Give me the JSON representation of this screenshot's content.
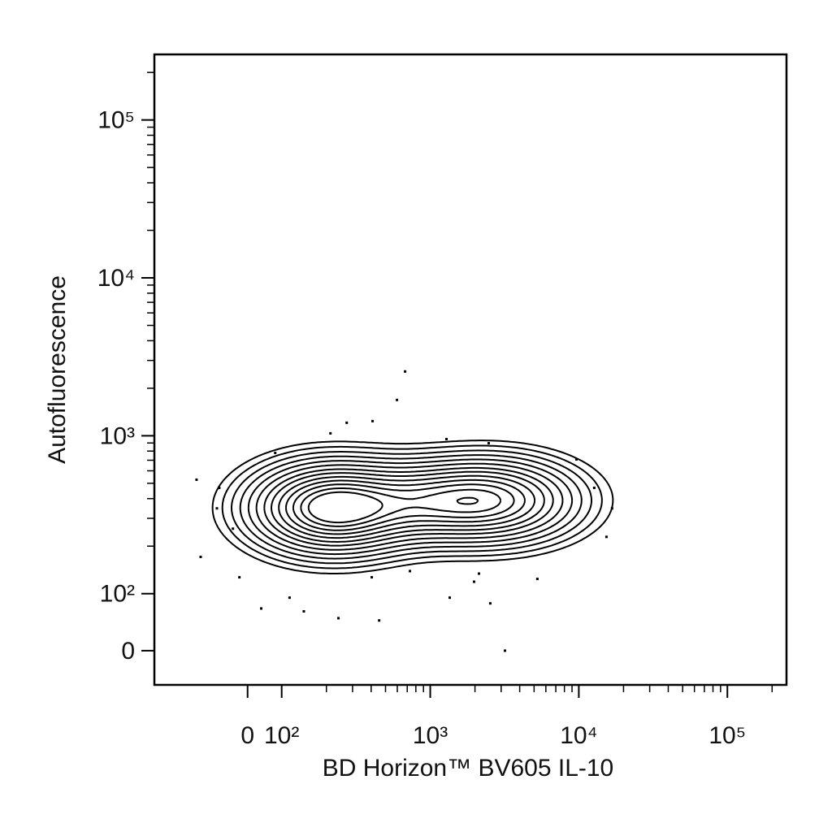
{
  "chart_data": {
    "type": "contour",
    "x_label": "BD Horizon™ BV605 IL-10",
    "y_label": "Autofluorescence",
    "xlim": [
      -250,
      250000
    ],
    "ylim": [
      -60,
      260000
    ],
    "xticks": [
      0,
      {
        "value": 100,
        "label": "10²"
      },
      {
        "value": 1000,
        "label": "10³"
      },
      {
        "value": 10000,
        "label": "10⁴"
      },
      {
        "value": 100000,
        "label": "10⁵"
      }
    ],
    "yticks": [
      0,
      {
        "value": 100,
        "label": "10²"
      },
      {
        "value": 1000,
        "label": "10³"
      },
      {
        "value": 10000,
        "label": "10⁴"
      },
      {
        "value": 100000,
        "label": "10⁵"
      }
    ],
    "xminorticks": [
      200,
      300,
      400,
      500,
      600,
      700,
      800,
      900,
      2000,
      3000,
      4000,
      5000,
      6000,
      7000,
      8000,
      9000,
      20000,
      30000,
      40000,
      50000,
      60000,
      70000,
      80000,
      90000,
      200000
    ],
    "yminorticks": [
      200,
      300,
      400,
      500,
      600,
      700,
      800,
      900,
      2000,
      3000,
      4000,
      5000,
      6000,
      7000,
      8000,
      9000,
      20000,
      30000,
      40000,
      50000,
      60000,
      70000,
      80000,
      90000,
      200000
    ],
    "populations": [
      {
        "x": 220,
        "y": 350,
        "sx": 0.33,
        "sy": 0.17,
        "weight": 1
      },
      {
        "x": 900,
        "y": 380,
        "sx": 0.3,
        "sy": 0.15,
        "weight": 0.35
      },
      {
        "x": 2600,
        "y": 390,
        "sx": 0.35,
        "sy": 0.16,
        "weight": 0.75
      }
    ],
    "contour_levels": [
      0.05,
      0.08,
      0.12,
      0.17,
      0.23,
      0.3,
      0.38,
      0.46,
      0.55,
      0.64,
      0.73,
      0.82,
      0.9
    ],
    "color": "#000000",
    "scatter": {
      "x": [
        -130,
        -122,
        -83,
        40,
        141,
        241,
        453,
        597,
        677,
        274,
        409,
        213,
        1352,
        2536,
        3184,
        1286,
        2474,
        9636,
        12700,
        16750,
        15350,
        5260,
        1972,
        -24,
        -43,
        81,
        404,
        730,
        -90,
        113,
        2128
      ],
      "y": [
        527,
        171,
        468,
        74,
        69,
        57,
        53,
        1686,
        2554,
        1209,
        1238,
        1036,
        93,
        83,
        0,
        952,
        897,
        708,
        468,
        347,
        229,
        124,
        119,
        127,
        258,
        779,
        127,
        139,
        347,
        93,
        134
      ]
    }
  }
}
